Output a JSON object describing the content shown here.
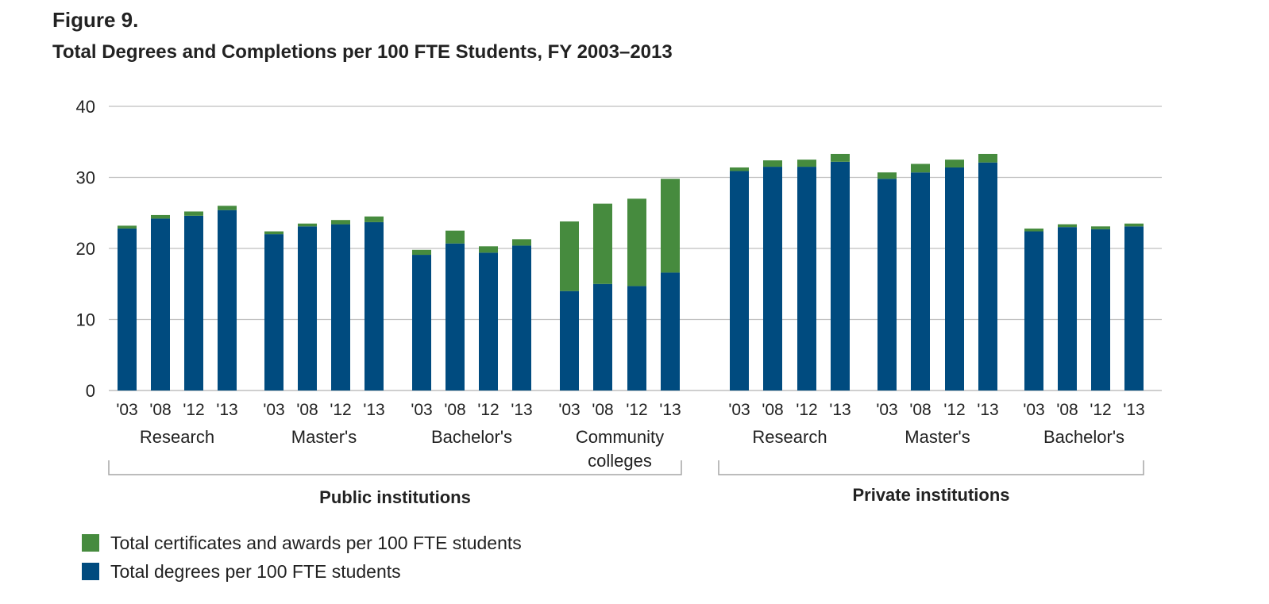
{
  "figure": {
    "label": "Figure 9.",
    "title": "Total Degrees and Completions per 100 FTE Students, FY 2003–2013"
  },
  "colors": {
    "degrees": "#004b7f",
    "certificates": "#468b3e",
    "grid": "#bfbfbf",
    "bracket": "#a6a6a6"
  },
  "legend": [
    {
      "name": "Total certificates and awards per 100 FTE students",
      "color": "#468b3e"
    },
    {
      "name": "Total degrees per 100 FTE students",
      "color": "#004b7f"
    }
  ],
  "chart_data": {
    "type": "bar",
    "stacked": true,
    "ylim": [
      0,
      40
    ],
    "yticks": [
      "0",
      "10",
      "20",
      "30",
      "40"
    ],
    "grid": true,
    "legend_position": "bottom-left",
    "sections": [
      {
        "name": "Public institutions",
        "groups": [
          {
            "name": "Research",
            "years": [
              "'03",
              "'08",
              "'12",
              "'13"
            ],
            "degrees": [
              22.8,
              24.2,
              24.6,
              25.4
            ],
            "certificates": [
              0.4,
              0.5,
              0.6,
              0.6
            ]
          },
          {
            "name": "Master's",
            "years": [
              "'03",
              "'08",
              "'12",
              "'13"
            ],
            "degrees": [
              22.0,
              23.1,
              23.4,
              23.7
            ],
            "certificates": [
              0.4,
              0.4,
              0.6,
              0.8
            ]
          },
          {
            "name": "Bachelor's",
            "years": [
              "'03",
              "'08",
              "'12",
              "'13"
            ],
            "degrees": [
              19.1,
              20.7,
              19.4,
              20.4
            ],
            "certificates": [
              0.7,
              1.8,
              0.9,
              0.9
            ]
          },
          {
            "name": "Community colleges",
            "years": [
              "'03",
              "'08",
              "'12",
              "'13"
            ],
            "degrees": [
              14.0,
              15.0,
              14.7,
              16.6
            ],
            "certificates": [
              9.8,
              11.3,
              12.3,
              13.2
            ]
          }
        ]
      },
      {
        "name": "Private institutions",
        "groups": [
          {
            "name": "Research",
            "years": [
              "'03",
              "'08",
              "'12",
              "'13"
            ],
            "degrees": [
              30.9,
              31.5,
              31.5,
              32.2
            ],
            "certificates": [
              0.5,
              0.9,
              1.0,
              1.1
            ]
          },
          {
            "name": "Master's",
            "years": [
              "'03",
              "'08",
              "'12",
              "'13"
            ],
            "degrees": [
              29.8,
              30.7,
              31.4,
              32.1
            ],
            "certificates": [
              0.9,
              1.2,
              1.1,
              1.2
            ]
          },
          {
            "name": "Bachelor's",
            "years": [
              "'03",
              "'08",
              "'12",
              "'13"
            ],
            "degrees": [
              22.4,
              23.0,
              22.7,
              23.1
            ],
            "certificates": [
              0.4,
              0.4,
              0.4,
              0.4
            ]
          }
        ]
      }
    ]
  }
}
